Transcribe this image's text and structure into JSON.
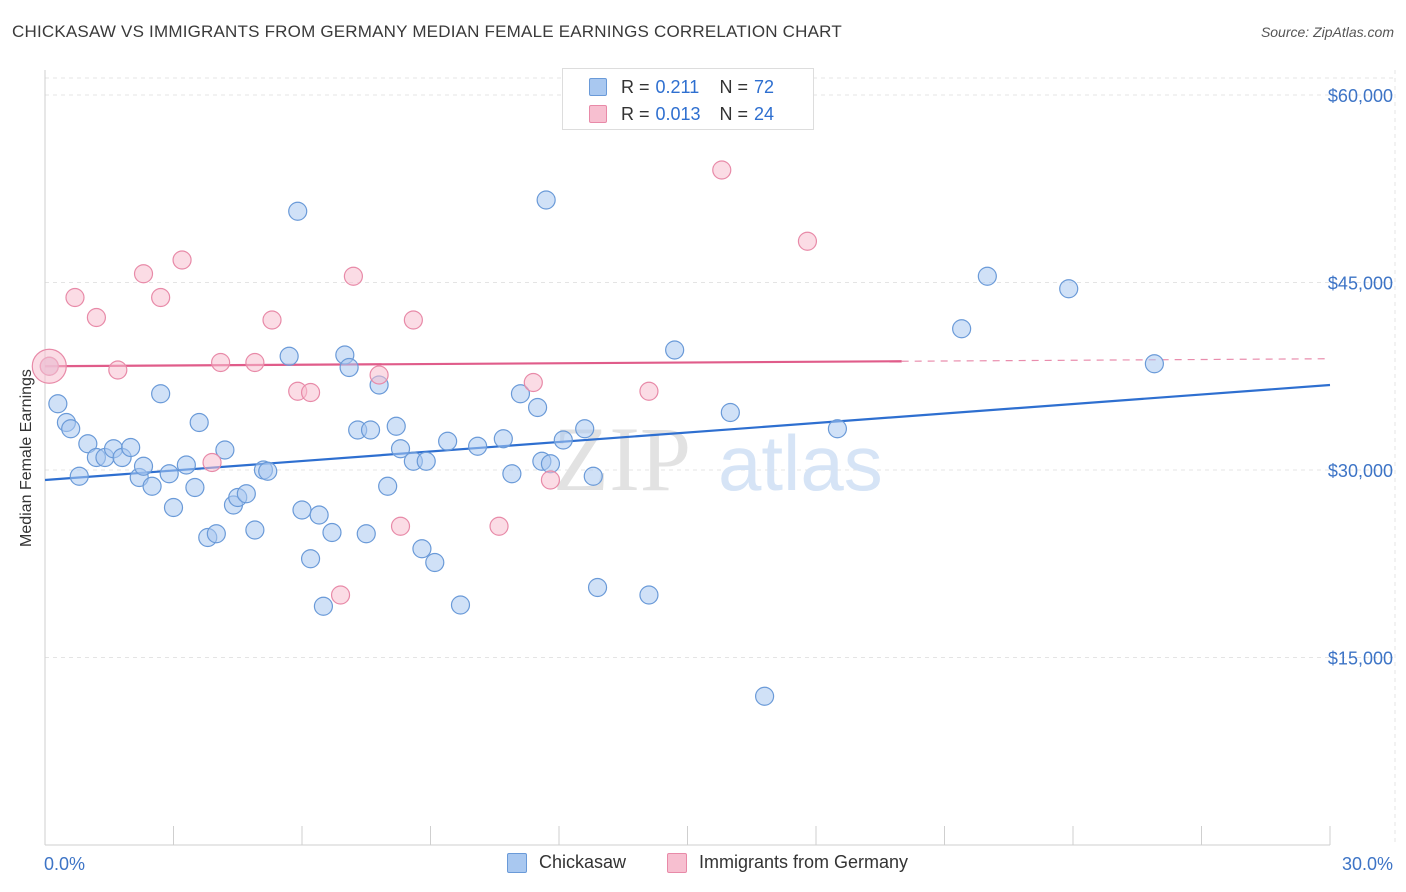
{
  "title": "CHICKASAW VS IMMIGRANTS FROM GERMANY MEDIAN FEMALE EARNINGS CORRELATION CHART",
  "source": "Source: ZipAtlas.com",
  "watermark": {
    "zip": "ZIP",
    "atlas": "atlas"
  },
  "stats_legend": [
    {
      "r_label": "R =",
      "r_value": "0.211",
      "n_label": "N =",
      "n_value": "72"
    },
    {
      "r_label": "R =",
      "r_value": "0.013",
      "n_label": "N =",
      "n_value": "24"
    }
  ],
  "bottom_legend": [
    "Chickasaw",
    "Immigrants from Germany"
  ],
  "colors": {
    "chickasaw_fill": "#a9c8f0",
    "chickasaw_stroke": "#6a9ad8",
    "chickasaw_line": "#2e6fd0",
    "germany_fill": "#f7bfd0",
    "germany_stroke": "#e88aa8",
    "germany_line": "#e05c8a",
    "tick_label": "#3d74c6",
    "grid": "#e4e4e4"
  },
  "chart_data": {
    "type": "scatter",
    "xlabel": "",
    "ylabel": "Median Female Earnings",
    "xlim": [
      0,
      30
    ],
    "ylim": [
      0,
      62000
    ],
    "x_tick_labels": [
      "0.0%",
      "30.0%"
    ],
    "y_ticks": [
      15000,
      30000,
      45000,
      60000
    ],
    "y_tick_labels": [
      "$15,000",
      "$30,000",
      "$45,000",
      "$60,000"
    ],
    "grid": true,
    "series": [
      {
        "name": "Chickasaw",
        "trend": {
          "x": [
            0,
            30
          ],
          "y": [
            29200,
            36800
          ],
          "dashed_from": null
        },
        "points": [
          [
            0.1,
            38300
          ],
          [
            0.3,
            35300
          ],
          [
            0.5,
            33800
          ],
          [
            0.6,
            33300
          ],
          [
            0.8,
            29500
          ],
          [
            1.0,
            32100
          ],
          [
            1.2,
            31000
          ],
          [
            1.4,
            31000
          ],
          [
            1.6,
            31700
          ],
          [
            1.8,
            31000
          ],
          [
            2.0,
            31800
          ],
          [
            2.2,
            29400
          ],
          [
            2.3,
            30300
          ],
          [
            2.5,
            28700
          ],
          [
            2.7,
            36100
          ],
          [
            2.9,
            29700
          ],
          [
            3.0,
            27000
          ],
          [
            3.3,
            30400
          ],
          [
            3.5,
            28600
          ],
          [
            3.6,
            33800
          ],
          [
            3.8,
            24600
          ],
          [
            4.0,
            24900
          ],
          [
            4.2,
            31600
          ],
          [
            4.4,
            27200
          ],
          [
            4.5,
            27800
          ],
          [
            4.7,
            28100
          ],
          [
            4.9,
            25200
          ],
          [
            5.1,
            30000
          ],
          [
            5.2,
            29900
          ],
          [
            5.7,
            39100
          ],
          [
            5.9,
            50700
          ],
          [
            6.0,
            26800
          ],
          [
            6.2,
            22900
          ],
          [
            6.4,
            26400
          ],
          [
            6.5,
            19100
          ],
          [
            6.7,
            25000
          ],
          [
            7.0,
            39200
          ],
          [
            7.1,
            38200
          ],
          [
            7.3,
            33200
          ],
          [
            7.6,
            33200
          ],
          [
            7.5,
            24900
          ],
          [
            7.8,
            36800
          ],
          [
            8.0,
            28700
          ],
          [
            8.2,
            33500
          ],
          [
            8.3,
            31700
          ],
          [
            8.6,
            30700
          ],
          [
            8.8,
            23700
          ],
          [
            8.9,
            30700
          ],
          [
            9.1,
            22600
          ],
          [
            9.4,
            32300
          ],
          [
            9.7,
            19200
          ],
          [
            10.1,
            31900
          ],
          [
            10.7,
            32500
          ],
          [
            10.9,
            29700
          ],
          [
            11.1,
            36100
          ],
          [
            11.5,
            35000
          ],
          [
            11.6,
            30700
          ],
          [
            11.7,
            51600
          ],
          [
            11.8,
            30500
          ],
          [
            12.1,
            32400
          ],
          [
            12.6,
            33300
          ],
          [
            12.8,
            29500
          ],
          [
            12.9,
            20600
          ],
          [
            14.1,
            20000
          ],
          [
            14.7,
            39600
          ],
          [
            16.0,
            34600
          ],
          [
            16.8,
            11900
          ],
          [
            18.5,
            33300
          ],
          [
            21.4,
            41300
          ],
          [
            22.0,
            45500
          ],
          [
            23.9,
            44500
          ],
          [
            25.9,
            38500
          ]
        ]
      },
      {
        "name": "Immigrants from Germany",
        "trend": {
          "x": [
            0,
            30
          ],
          "y": [
            38300,
            38900
          ],
          "dashed_from": 20
        },
        "points": [
          [
            0.1,
            38300
          ],
          [
            0.7,
            43800
          ],
          [
            1.2,
            42200
          ],
          [
            1.7,
            38000
          ],
          [
            2.3,
            45700
          ],
          [
            2.7,
            43800
          ],
          [
            3.2,
            46800
          ],
          [
            3.9,
            30600
          ],
          [
            4.1,
            38600
          ],
          [
            4.9,
            38600
          ],
          [
            5.3,
            42000
          ],
          [
            5.9,
            36300
          ],
          [
            6.2,
            36200
          ],
          [
            6.9,
            20000
          ],
          [
            7.2,
            45500
          ],
          [
            7.8,
            37600
          ],
          [
            8.3,
            25500
          ],
          [
            8.6,
            42000
          ],
          [
            10.6,
            25500
          ],
          [
            11.4,
            37000
          ],
          [
            11.8,
            29200
          ],
          [
            14.1,
            36300
          ],
          [
            15.8,
            54000
          ],
          [
            17.8,
            48300
          ]
        ]
      }
    ]
  }
}
